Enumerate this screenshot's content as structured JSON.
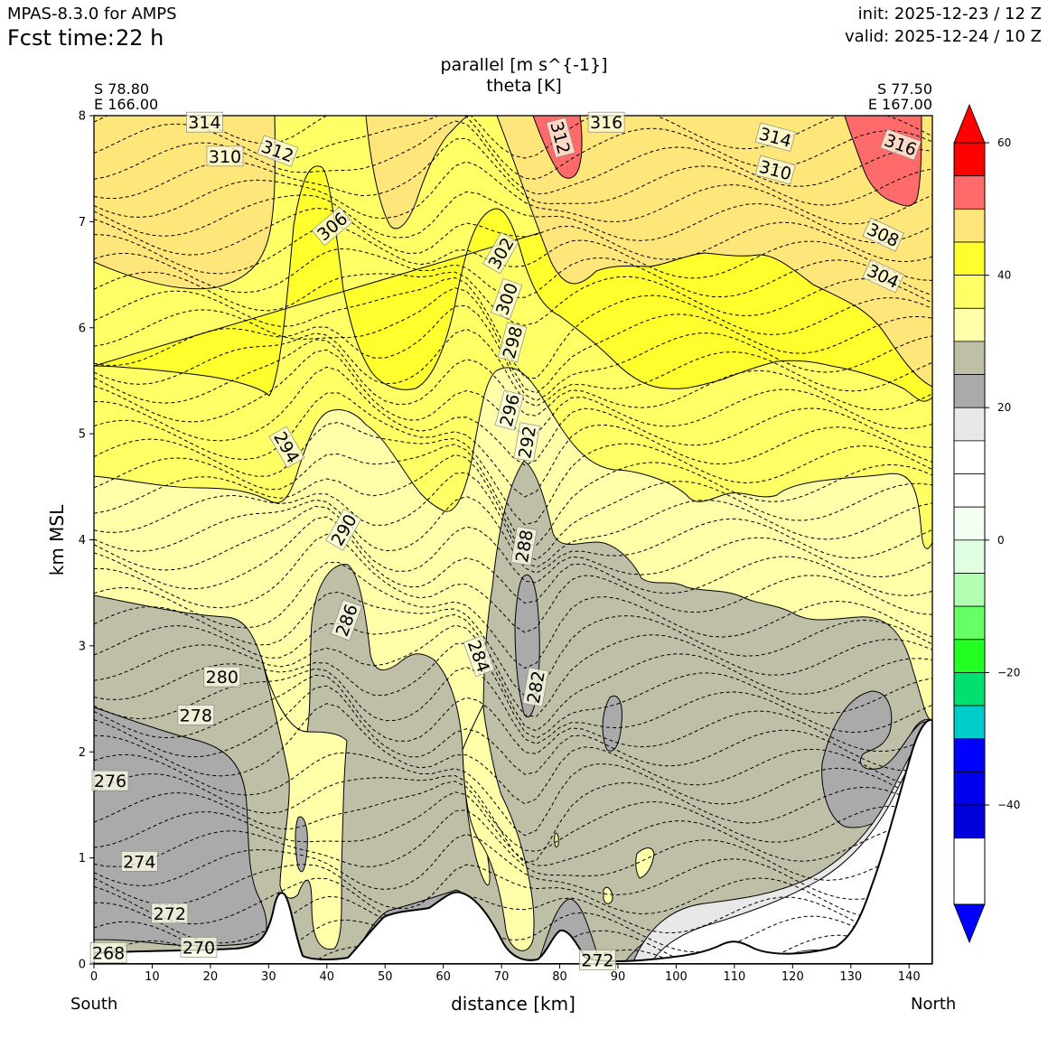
{
  "header": {
    "model": "MPAS-8.3.0 for AMPS",
    "fcst_label": "Fcst time:",
    "fcst_value": "22 h",
    "init": "init: 2025-12-23 / 12 Z",
    "valid": "valid: 2025-12-24 / 10 Z"
  },
  "chart_data": {
    "type": "contour cross-section",
    "title_lines": [
      "parallel [m s^{-1}]",
      "theta [K]"
    ],
    "xlabel": "distance [km]",
    "ylabel": "km MSL",
    "xlim": [
      0,
      144
    ],
    "ylim": [
      0,
      8
    ],
    "x_ticks": [
      0,
      10,
      20,
      30,
      40,
      50,
      60,
      70,
      80,
      90,
      100,
      110,
      120,
      130,
      140
    ],
    "y_ticks": [
      0,
      1,
      2,
      3,
      4,
      5,
      6,
      7,
      8
    ],
    "endpoints": {
      "left": {
        "lat": "S 78.80",
        "lon": "E 166.00",
        "direction": "South"
      },
      "right": {
        "lat": "S 77.50",
        "lon": "E 167.00",
        "direction": "North"
      }
    },
    "colorbar": {
      "range": [
        -55,
        60
      ],
      "tick_values": [
        60,
        40,
        20,
        0,
        -20,
        -40
      ],
      "tick_labels": [
        "60",
        "40",
        "20",
        "0",
        "−20",
        "−40"
      ],
      "levels": [
        {
          "from": 55,
          "to": 60,
          "color": "#ff0000"
        },
        {
          "from": 50,
          "to": 55,
          "color": "#ff6a6a"
        },
        {
          "from": 45,
          "to": 50,
          "color": "#ffe67a"
        },
        {
          "from": 40,
          "to": 45,
          "color": "#ffff2e"
        },
        {
          "from": 35,
          "to": 40,
          "color": "#ffff66"
        },
        {
          "from": 30,
          "to": 35,
          "color": "#ffffaa"
        },
        {
          "from": 25,
          "to": 30,
          "color": "#bfbfa8"
        },
        {
          "from": 20,
          "to": 25,
          "color": "#aaaaaa"
        },
        {
          "from": 15,
          "to": 20,
          "color": "#e8e8e8"
        },
        {
          "from": 10,
          "to": 15,
          "color": "#ffffff"
        },
        {
          "from": 5,
          "to": 10,
          "color": "#ffffff"
        },
        {
          "from": 0,
          "to": 5,
          "color": "#f4fff4"
        },
        {
          "from": -5,
          "to": 0,
          "color": "#e0ffe0"
        },
        {
          "from": -10,
          "to": -5,
          "color": "#b2ffb2"
        },
        {
          "from": -15,
          "to": -10,
          "color": "#66ff66"
        },
        {
          "from": -20,
          "to": -15,
          "color": "#22ff22"
        },
        {
          "from": -25,
          "to": -20,
          "color": "#00e070"
        },
        {
          "from": -30,
          "to": -25,
          "color": "#00cccc"
        },
        {
          "from": -35,
          "to": -30,
          "color": "#0000ff"
        },
        {
          "from": -40,
          "to": -35,
          "color": "#0000ee"
        },
        {
          "from": -45,
          "to": -40,
          "color": "#0000dd"
        }
      ],
      "extend": "both"
    },
    "theta_labels": [
      {
        "text": "314",
        "x": 19.0,
        "y": 7.93,
        "rot": 0
      },
      {
        "text": "310",
        "x": 22.5,
        "y": 7.61,
        "rot": 0
      },
      {
        "text": "312",
        "x": 31.5,
        "y": 7.66,
        "rot": 20
      },
      {
        "text": "306",
        "x": 41.0,
        "y": 6.95,
        "rot": -40
      },
      {
        "text": "312",
        "x": 80.0,
        "y": 7.79,
        "rot": 75
      },
      {
        "text": "316",
        "x": 88.0,
        "y": 7.93,
        "rot": 0
      },
      {
        "text": "314",
        "x": 117.0,
        "y": 7.79,
        "rot": 15
      },
      {
        "text": "316",
        "x": 138.5,
        "y": 7.72,
        "rot": 20
      },
      {
        "text": "310",
        "x": 117.0,
        "y": 7.48,
        "rot": 15
      },
      {
        "text": "308",
        "x": 135.5,
        "y": 6.87,
        "rot": 25
      },
      {
        "text": "304",
        "x": 135.5,
        "y": 6.48,
        "rot": 25
      },
      {
        "text": "302",
        "x": 70.0,
        "y": 6.7,
        "rot": -60
      },
      {
        "text": "300",
        "x": 71.0,
        "y": 6.27,
        "rot": -70
      },
      {
        "text": "298",
        "x": 72.0,
        "y": 5.86,
        "rot": -75
      },
      {
        "text": "296",
        "x": 71.5,
        "y": 5.22,
        "rot": -75
      },
      {
        "text": "292",
        "x": 74.5,
        "y": 4.92,
        "rot": -80
      },
      {
        "text": "294",
        "x": 33.0,
        "y": 4.87,
        "rot": 60
      },
      {
        "text": "290",
        "x": 43.0,
        "y": 4.09,
        "rot": -60
      },
      {
        "text": "288",
        "x": 74.0,
        "y": 3.94,
        "rot": -80
      },
      {
        "text": "286",
        "x": 43.5,
        "y": 3.24,
        "rot": -70
      },
      {
        "text": "284",
        "x": 66.0,
        "y": 2.9,
        "rot": 70
      },
      {
        "text": "282",
        "x": 76.0,
        "y": 2.61,
        "rot": -80
      },
      {
        "text": "280",
        "x": 22.0,
        "y": 2.7,
        "rot": 0
      },
      {
        "text": "278",
        "x": 17.5,
        "y": 2.34,
        "rot": 0
      },
      {
        "text": "276",
        "x": 2.8,
        "y": 1.72,
        "rot": 0
      },
      {
        "text": "274",
        "x": 7.8,
        "y": 0.96,
        "rot": 0
      },
      {
        "text": "272",
        "x": 13.0,
        "y": 0.47,
        "rot": 0
      },
      {
        "text": "270",
        "x": 18.0,
        "y": 0.15,
        "rot": 0
      },
      {
        "text": "268",
        "x": 2.5,
        "y": 0.1,
        "rot": 0
      },
      {
        "text": "272",
        "x": 86.5,
        "y": 0.03,
        "rot": 0
      }
    ]
  }
}
